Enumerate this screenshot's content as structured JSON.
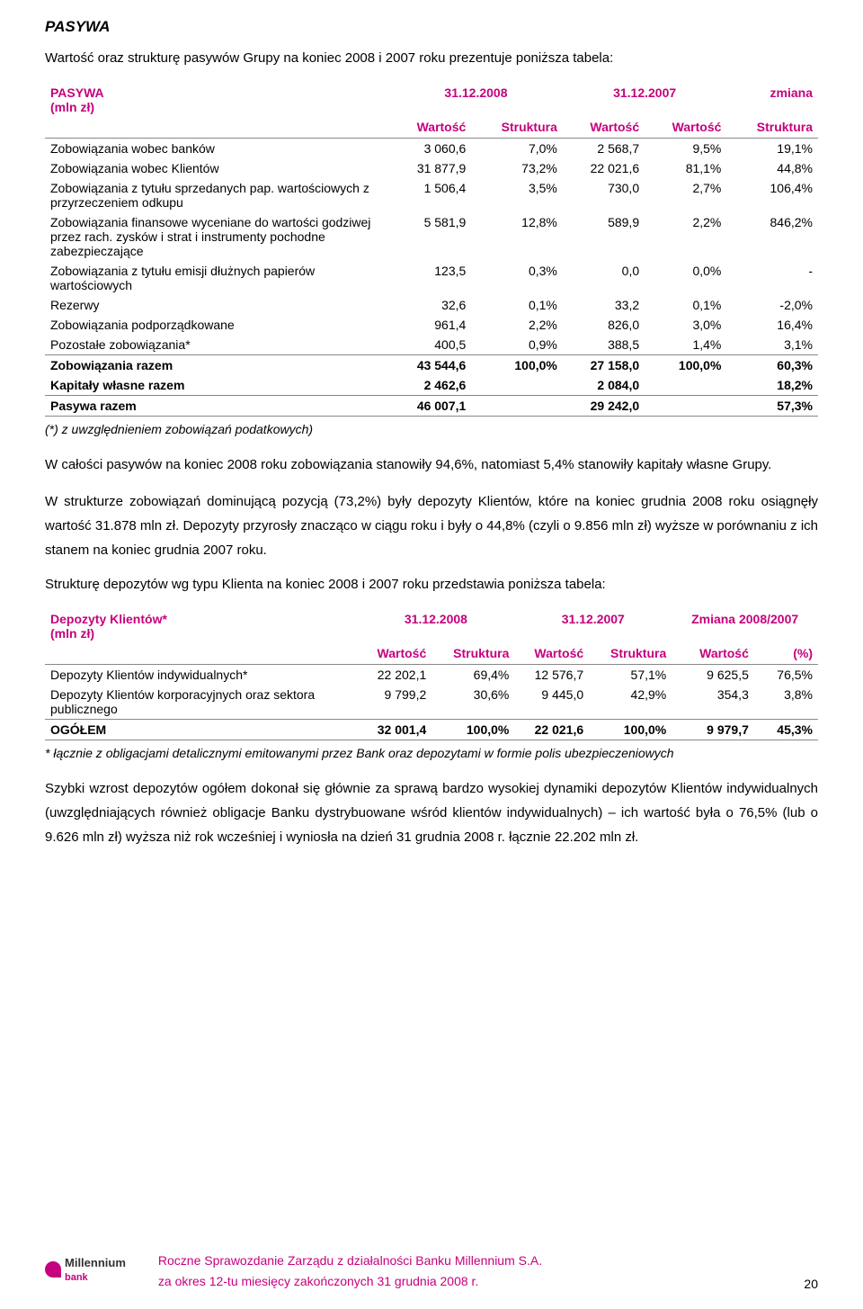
{
  "section_title": "PASYWA",
  "intro": "Wartość oraz strukturę pasywów Grupy na koniec 2008 i 2007 roku prezentuje poniższa tabela:",
  "table1": {
    "header_left": "PASYWA\n(mln zł)",
    "col_date1": "31.12.2008",
    "col_date2": "31.12.2007",
    "col_change": "zmiana",
    "sub_headers": [
      "Wartość",
      "Struktura",
      "Wartość",
      "Wartość",
      "Struktura"
    ],
    "rows": [
      {
        "label": "Zobowiązania wobec banków",
        "v": [
          "3 060,6",
          "7,0%",
          "2 568,7",
          "9,5%",
          "19,1%"
        ],
        "bold": false
      },
      {
        "label": "Zobowiązania wobec Klientów",
        "v": [
          "31 877,9",
          "73,2%",
          "22 021,6",
          "81,1%",
          "44,8%"
        ],
        "bold": false
      },
      {
        "label": "Zobowiązania z tytułu sprzedanych pap. wartościowych z przyrzeczeniem odkupu",
        "v": [
          "1 506,4",
          "3,5%",
          "730,0",
          "2,7%",
          "106,4%"
        ],
        "bold": false
      },
      {
        "label": "Zobowiązania finansowe wyceniane do wartości godziwej przez rach. zysków i strat i instrumenty pochodne zabezpieczające",
        "v": [
          "5 581,9",
          "12,8%",
          "589,9",
          "2,2%",
          "846,2%"
        ],
        "bold": false
      },
      {
        "label": "Zobowiązania z tytułu emisji dłużnych papierów wartościowych",
        "v": [
          "123,5",
          "0,3%",
          "0,0",
          "0,0%",
          "-"
        ],
        "bold": false
      },
      {
        "label": "Rezerwy",
        "v": [
          "32,6",
          "0,1%",
          "33,2",
          "0,1%",
          "-2,0%"
        ],
        "bold": false
      },
      {
        "label": "Zobowiązania podporządkowane",
        "v": [
          "961,4",
          "2,2%",
          "826,0",
          "3,0%",
          "16,4%"
        ],
        "bold": false
      },
      {
        "label": "Pozostałe zobowiązania*",
        "v": [
          "400,5",
          "0,9%",
          "388,5",
          "1,4%",
          "3,1%"
        ],
        "bold": false
      },
      {
        "label": "Zobowiązania razem",
        "v": [
          "43 544,6",
          "100,0%",
          "27 158,0",
          "100,0%",
          "60,3%"
        ],
        "bold": true,
        "sep": true
      },
      {
        "label": "Kapitały własne razem",
        "v": [
          "2 462,6",
          "",
          "2 084,0",
          "",
          "18,2%"
        ],
        "bold": true
      },
      {
        "label": "Pasywa razem",
        "v": [
          "46 007,1",
          "",
          "29 242,0",
          "",
          "57,3%"
        ],
        "bold": true,
        "sep": true,
        "sep_bottom": true
      }
    ],
    "footnote": "(*) z uwzględnieniem zobowiązań podatkowych)"
  },
  "para1": "W całości pasywów na koniec 2008 roku zobowiązania stanowiły 94,6%, natomiast 5,4% stanowiły kapitały własne Grupy.",
  "para2": "W strukturze zobowiązań dominującą pozycją (73,2%) były depozyty Klientów, które na koniec grudnia 2008 roku osiągnęły wartość 31.878 mln zł. Depozyty przyrosły znacząco w ciągu roku i były o 44,8% (czyli o 9.856 mln zł) wyższe w porównaniu z ich stanem na koniec grudnia 2007 roku.",
  "table2_intro": "Strukturę depozytów wg typu Klienta na koniec 2008 i 2007 roku przedstawia poniższa tabela:",
  "table2": {
    "header_left": "Depozyty Klientów*\n(mln zł)",
    "col_date1": "31.12.2008",
    "col_date2": "31.12.2007",
    "col_change": "Zmiana 2008/2007",
    "sub_headers": [
      "Wartość",
      "Struktura",
      "Wartość",
      "Struktura",
      "Wartość",
      "(%)"
    ],
    "rows": [
      {
        "label": "Depozyty Klientów indywidualnych*",
        "v": [
          "22 202,1",
          "69,4%",
          "12 576,7",
          "57,1%",
          "9 625,5",
          "76,5%"
        ],
        "bold": false
      },
      {
        "label": "Depozyty Klientów korporacyjnych oraz sektora publicznego",
        "v": [
          "9 799,2",
          "30,6%",
          "9 445,0",
          "42,9%",
          "354,3",
          "3,8%"
        ],
        "bold": false
      },
      {
        "label": "OGÓŁEM",
        "v": [
          "32 001,4",
          "100,0%",
          "22 021,6",
          "100,0%",
          "9 979,7",
          "45,3%"
        ],
        "bold": true,
        "sep": true,
        "sep_bottom": true
      }
    ],
    "footnote": "* łącznie z obligacjami detalicznymi emitowanymi przez Bank oraz  depozytami w formie polis ubezpieczeniowych"
  },
  "para3": "Szybki wzrost depozytów ogółem dokonał się głównie za sprawą bardzo wysokiej dynamiki depozytów Klientów indywidualnych (uwzględniających również obligacje Banku dystrybuowane wśród klientów indywidualnych) – ich wartość była o 76,5% (lub o 9.626 mln zł) wyższa niż rok wcześniej i wyniosła na dzień 31 grudnia 2008 r. łącznie 22.202 mln zł.",
  "footer": {
    "logo_text": "Millennium",
    "logo_sub": "bank",
    "line1": "Roczne Sprawozdanie Zarządu z działalności Banku Millennium S.A.",
    "line2": "za okres 12-tu miesięcy zakończonych 31 grudnia 2008 r.",
    "page_num": "20"
  },
  "colors": {
    "accent": "#c6007e",
    "text": "#000000",
    "bg": "#ffffff",
    "rule": "#888888"
  }
}
